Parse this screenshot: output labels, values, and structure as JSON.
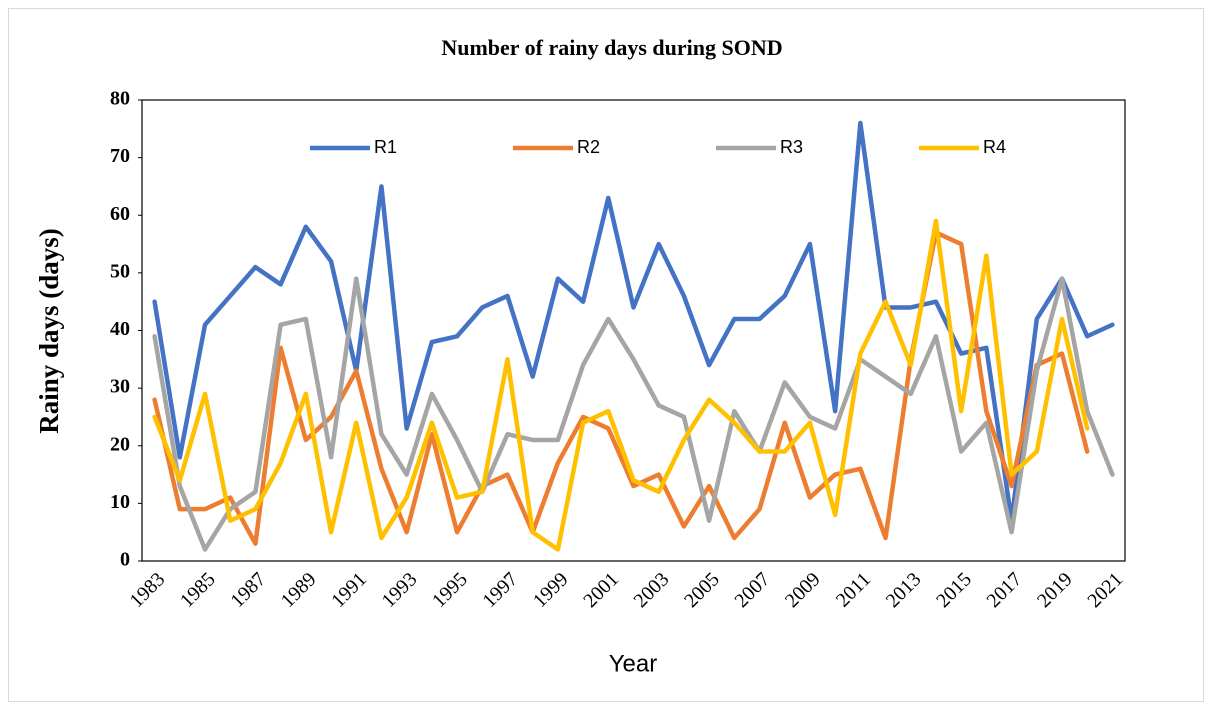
{
  "chart_data": {
    "type": "line",
    "title": "Number of rainy days during SOND",
    "xlabel": "Year",
    "ylabel": "Rainy days (days)",
    "categories": [
      1983,
      null,
      1985,
      null,
      1987,
      null,
      1989,
      null,
      1991,
      null,
      1993,
      null,
      1995,
      null,
      1997,
      null,
      1999,
      null,
      2001,
      null,
      2003,
      null,
      2005,
      null,
      2007,
      null,
      2009,
      null,
      2011,
      null,
      2013,
      null,
      2015,
      null,
      2017,
      null,
      2019,
      null,
      2021
    ],
    "series": [
      {
        "name": "R1",
        "color": "#4472c4",
        "values": [
          45,
          18,
          41,
          46,
          51,
          48,
          58,
          52,
          33,
          65,
          23,
          38,
          39,
          44,
          46,
          32,
          49,
          45,
          63,
          44,
          55,
          46,
          34,
          42,
          42,
          46,
          55,
          26,
          76,
          44,
          44,
          45,
          36,
          37,
          7,
          42,
          49,
          39,
          41
        ]
      },
      {
        "name": "R2",
        "color": "#ed7d31",
        "values": [
          28,
          9,
          9,
          11,
          3,
          37,
          21,
          25,
          33,
          16,
          5,
          22,
          5,
          13,
          15,
          5,
          17,
          25,
          23,
          13,
          15,
          6,
          13,
          4,
          9,
          24,
          11,
          15,
          16,
          4,
          35,
          57,
          55,
          26,
          13,
          34,
          36,
          19,
          null
        ]
      },
      {
        "name": "R3",
        "color": "#a5a5a5",
        "values": [
          39,
          13,
          2,
          9,
          12,
          41,
          42,
          18,
          49,
          22,
          15,
          29,
          21,
          12,
          22,
          21,
          21,
          34,
          42,
          35,
          27,
          25,
          7,
          26,
          19,
          31,
          25,
          23,
          35,
          32,
          29,
          39,
          19,
          24,
          5,
          33,
          49,
          26,
          15
        ]
      },
      {
        "name": "R4",
        "color": "#ffc000",
        "values": [
          25,
          14,
          29,
          7,
          9,
          17,
          29,
          5,
          24,
          4,
          11,
          24,
          11,
          12,
          35,
          5,
          2,
          24,
          26,
          14,
          12,
          21,
          28,
          24,
          19,
          19,
          24,
          8,
          36,
          45,
          34,
          59,
          26,
          53,
          15,
          19,
          42,
          23,
          null
        ]
      }
    ],
    "ylim": [
      0,
      80
    ],
    "yticks": [
      0,
      10,
      20,
      30,
      40,
      50,
      60,
      70,
      80
    ],
    "legend": "top"
  }
}
